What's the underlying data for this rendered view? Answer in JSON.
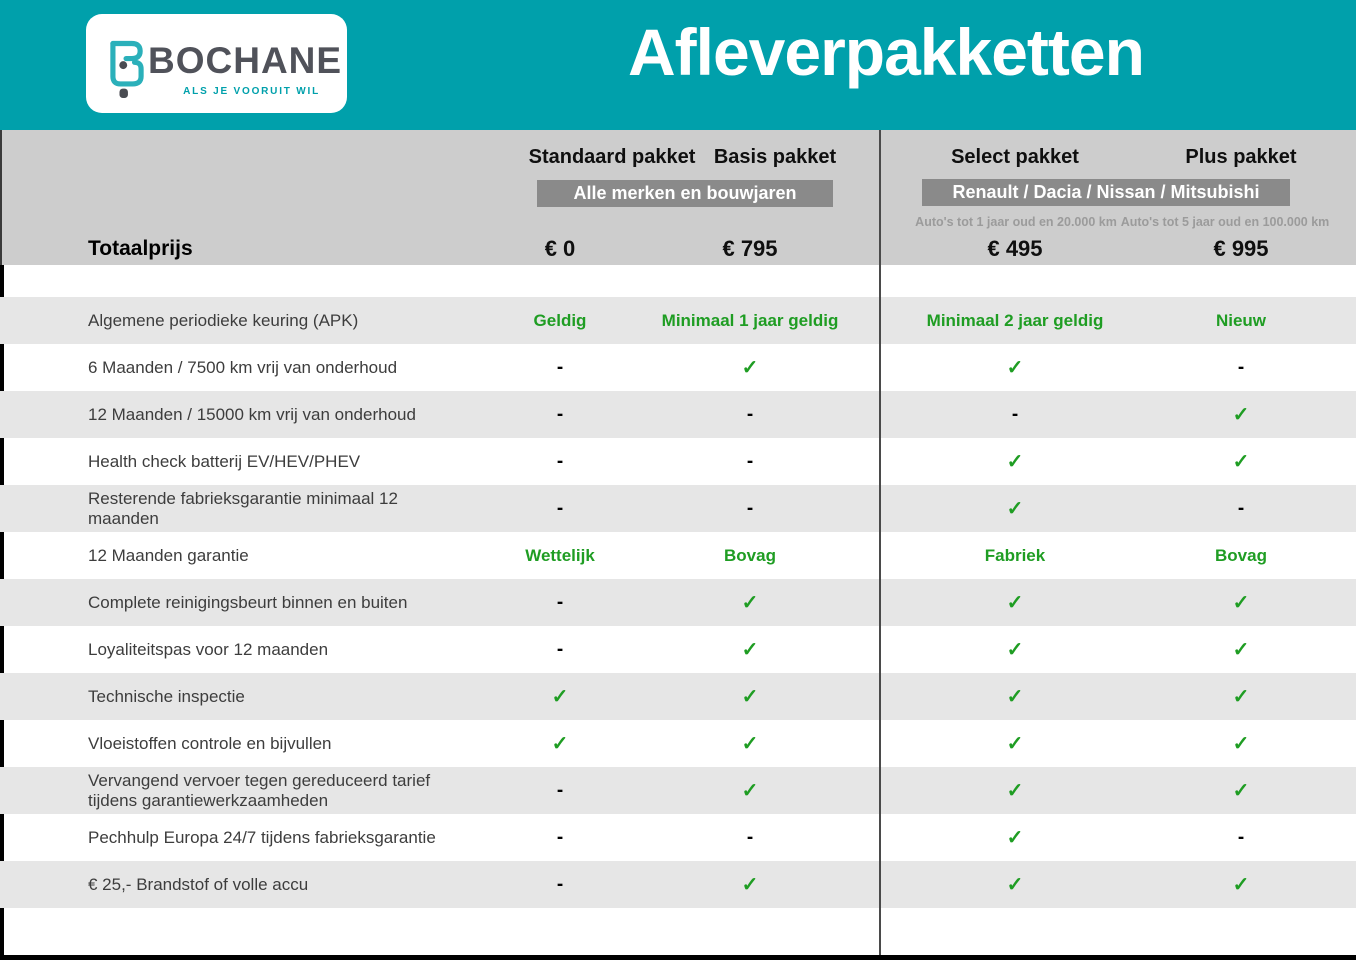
{
  "brand": {
    "name": "BOCHANE",
    "tagline": "ALS JE VOORUIT WIL"
  },
  "page_title": "Afleverpakketten",
  "pricing": {
    "total_label": "Totaalprijs",
    "group_badges": [
      "Alle merken en bouwjaren",
      "Renault / Dacia / Nissan / Mitsubishi"
    ],
    "columns": [
      {
        "name": "Standaard pakket",
        "subtitle": "",
        "price": "€ 0"
      },
      {
        "name": "Basis pakket",
        "subtitle": "",
        "price": "€ 795"
      },
      {
        "name": "Select pakket",
        "subtitle": "Auto's tot 1 jaar oud en 20.000 km",
        "price": "€ 495"
      },
      {
        "name": "Plus pakket",
        "subtitle": "Auto's tot 5 jaar oud en 100.000 km",
        "price": "€ 995"
      }
    ],
    "symbols": {
      "check": "✓",
      "dash": "-"
    },
    "rows": [
      {
        "feature": "Algemene periodieke keuring (APK)",
        "values": [
          "Geldig",
          "Minimaal 1 jaar geldig",
          "Minimaal 2 jaar geldig",
          "Nieuw"
        ]
      },
      {
        "feature": "6 Maanden / 7500 km vrij van onderhoud",
        "values": [
          "dash",
          "check",
          "check",
          "dash"
        ]
      },
      {
        "feature": "12 Maanden / 15000 km vrij van onderhoud",
        "values": [
          "dash",
          "dash",
          "dash",
          "check"
        ]
      },
      {
        "feature": "Health check batterij EV/HEV/PHEV",
        "values": [
          "dash",
          "dash",
          "check",
          "check"
        ]
      },
      {
        "feature": "Resterende fabrieksgarantie minimaal 12 maanden",
        "values": [
          "dash",
          "dash",
          "check",
          "dash"
        ]
      },
      {
        "feature": "12 Maanden  garantie",
        "values": [
          "Wettelijk",
          "Bovag",
          "Fabriek",
          "Bovag"
        ]
      },
      {
        "feature": "Complete reinigingsbeurt binnen en buiten",
        "values": [
          "dash",
          "check",
          "check",
          "check"
        ]
      },
      {
        "feature": "Loyaliteitspas voor 12 maanden",
        "values": [
          "dash",
          "check",
          "check",
          "check"
        ]
      },
      {
        "feature": "Technische inspectie",
        "values": [
          "check",
          "check",
          "check",
          "check"
        ]
      },
      {
        "feature": "Vloeistoffen controle en bijvullen",
        "values": [
          "check",
          "check",
          "check",
          "check"
        ]
      },
      {
        "feature": "Vervangend vervoer tegen gereduceerd tarief tijdens garantiewerkzaamheden",
        "values": [
          "dash",
          "check",
          "check",
          "check"
        ]
      },
      {
        "feature": "Pechhulp Europa 24/7 tijdens fabrieksgarantie",
        "values": [
          "dash",
          "dash",
          "check",
          "dash"
        ]
      },
      {
        "feature": "€ 25,- Brandstof of  volle accu",
        "values": [
          "dash",
          "check",
          "check",
          "check"
        ]
      }
    ]
  },
  "colors": {
    "teal": "#00a0ab",
    "green": "#1f9d23",
    "band_gray": "#cdcdcd",
    "row_gray": "#e6e6e6",
    "badge_gray": "#8a8a8a"
  }
}
